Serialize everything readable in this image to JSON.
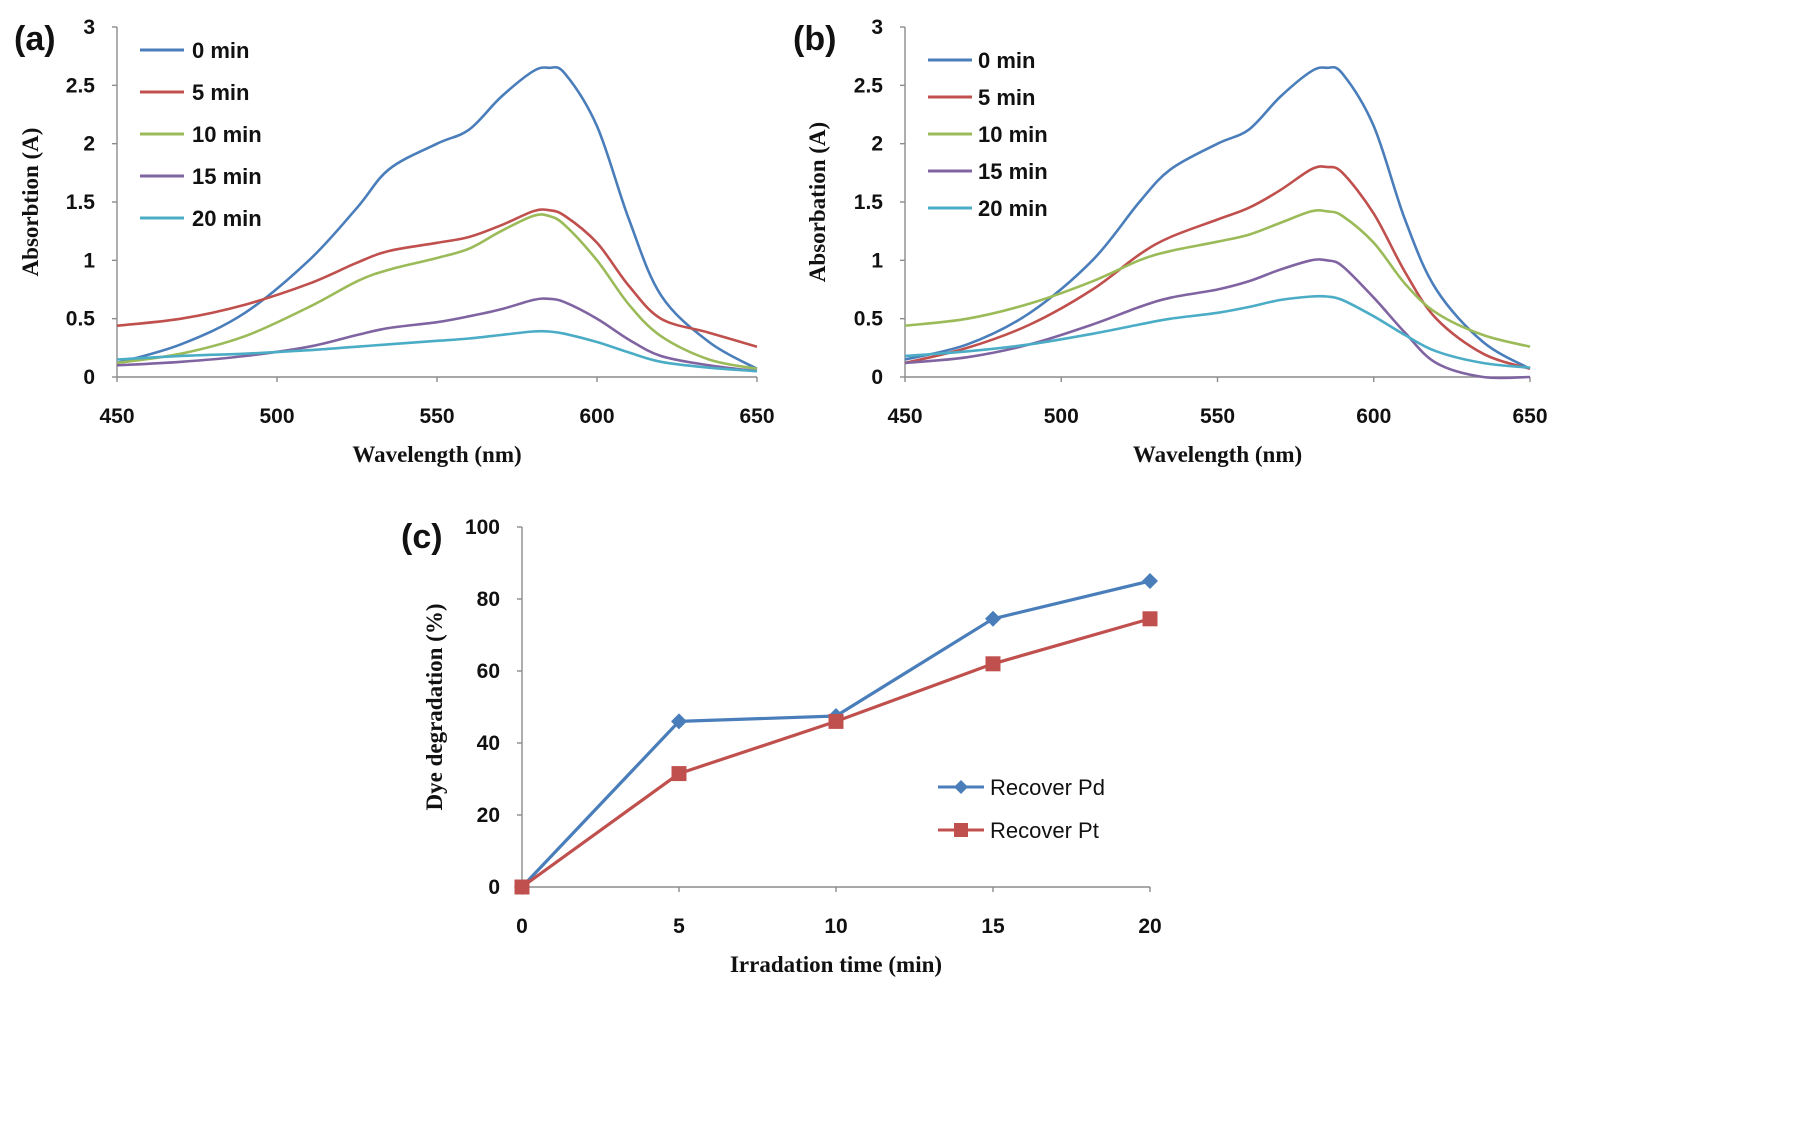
{
  "chart_data": [
    {
      "panel_label": "(a)",
      "type": "line",
      "xlabel": "Wavelength (nm)",
      "ylabel": "Absorbtion (A)",
      "xlim": [
        450,
        650
      ],
      "ylim": [
        0,
        3
      ],
      "xticks": [
        450,
        500,
        550,
        600,
        650
      ],
      "yticks": [
        0,
        0.5,
        1,
        1.5,
        2,
        2.5,
        3
      ],
      "ytick_labels": [
        "0",
        "0.5",
        "1",
        "1.5",
        "2",
        "2.5",
        "3"
      ],
      "grid": false,
      "legend_position": "top-left",
      "series": [
        {
          "name": "0 min",
          "color": "#4a7ebb",
          "x": [
            450,
            470,
            490,
            510,
            525,
            535,
            550,
            560,
            570,
            580,
            585,
            590,
            600,
            610,
            620,
            635,
            650
          ],
          "y": [
            0.12,
            0.28,
            0.55,
            1.0,
            1.45,
            1.78,
            2.0,
            2.12,
            2.4,
            2.62,
            2.65,
            2.6,
            2.15,
            1.35,
            0.7,
            0.3,
            0.07
          ]
        },
        {
          "name": "5 min",
          "color": "#c0504d",
          "x": [
            450,
            470,
            490,
            510,
            525,
            535,
            550,
            560,
            570,
            580,
            585,
            590,
            600,
            610,
            620,
            635,
            650
          ],
          "y": [
            0.44,
            0.5,
            0.62,
            0.8,
            0.98,
            1.08,
            1.15,
            1.2,
            1.3,
            1.42,
            1.43,
            1.38,
            1.15,
            0.78,
            0.5,
            0.38,
            0.26
          ]
        },
        {
          "name": "10 min",
          "color": "#9bbb59",
          "x": [
            450,
            470,
            490,
            510,
            525,
            535,
            550,
            560,
            570,
            580,
            585,
            590,
            600,
            610,
            620,
            635,
            650
          ],
          "y": [
            0.12,
            0.2,
            0.35,
            0.6,
            0.82,
            0.92,
            1.02,
            1.1,
            1.25,
            1.38,
            1.38,
            1.3,
            1.0,
            0.62,
            0.35,
            0.15,
            0.07
          ]
        },
        {
          "name": "15 min",
          "color": "#8064a2",
          "x": [
            450,
            470,
            490,
            510,
            525,
            535,
            550,
            560,
            570,
            580,
            585,
            590,
            600,
            610,
            620,
            635,
            650
          ],
          "y": [
            0.1,
            0.13,
            0.18,
            0.26,
            0.36,
            0.42,
            0.47,
            0.52,
            0.58,
            0.66,
            0.67,
            0.64,
            0.5,
            0.32,
            0.18,
            0.1,
            0.05
          ]
        },
        {
          "name": "20 min",
          "color": "#4bacc6",
          "x": [
            450,
            470,
            490,
            510,
            525,
            535,
            550,
            560,
            570,
            580,
            585,
            590,
            600,
            610,
            620,
            635,
            650
          ],
          "y": [
            0.15,
            0.18,
            0.2,
            0.23,
            0.26,
            0.28,
            0.31,
            0.33,
            0.36,
            0.39,
            0.39,
            0.37,
            0.3,
            0.21,
            0.13,
            0.08,
            0.05
          ]
        }
      ]
    },
    {
      "panel_label": "(b)",
      "type": "line",
      "xlabel": "Wavelength (nm)",
      "ylabel": "Absorbation (A)",
      "xlim": [
        450,
        650
      ],
      "ylim": [
        0,
        3
      ],
      "xticks": [
        450,
        500,
        550,
        600,
        650
      ],
      "yticks": [
        0,
        0.5,
        1,
        1.5,
        2,
        2.5,
        3
      ],
      "ytick_labels": [
        "0",
        "0.5",
        "1",
        "1.5",
        "2",
        "2.5",
        "3"
      ],
      "grid": false,
      "legend_position": "top-left",
      "series": [
        {
          "name": "0 min",
          "color": "#4a7ebb",
          "x": [
            450,
            470,
            490,
            510,
            525,
            535,
            550,
            560,
            570,
            580,
            585,
            590,
            600,
            610,
            620,
            635,
            650
          ],
          "y": [
            0.15,
            0.28,
            0.55,
            1.0,
            1.5,
            1.78,
            2.0,
            2.12,
            2.4,
            2.62,
            2.65,
            2.6,
            2.15,
            1.35,
            0.75,
            0.3,
            0.07
          ]
        },
        {
          "name": "5 min",
          "color": "#c0504d",
          "x": [
            450,
            470,
            490,
            510,
            525,
            535,
            550,
            560,
            570,
            580,
            585,
            590,
            600,
            610,
            620,
            635,
            650
          ],
          "y": [
            0.12,
            0.25,
            0.45,
            0.75,
            1.05,
            1.2,
            1.35,
            1.45,
            1.6,
            1.78,
            1.8,
            1.75,
            1.4,
            0.9,
            0.5,
            0.2,
            0.07
          ]
        },
        {
          "name": "10 min",
          "color": "#9bbb59",
          "x": [
            450,
            470,
            490,
            510,
            525,
            535,
            550,
            560,
            570,
            580,
            585,
            590,
            600,
            610,
            620,
            635,
            650
          ],
          "y": [
            0.44,
            0.5,
            0.63,
            0.82,
            1.0,
            1.08,
            1.16,
            1.22,
            1.32,
            1.42,
            1.42,
            1.38,
            1.15,
            0.8,
            0.55,
            0.36,
            0.26
          ]
        },
        {
          "name": "15 min",
          "color": "#8064a2",
          "x": [
            450,
            470,
            490,
            510,
            525,
            535,
            550,
            560,
            570,
            580,
            585,
            590,
            600,
            610,
            620,
            635,
            650
          ],
          "y": [
            0.12,
            0.17,
            0.28,
            0.45,
            0.6,
            0.68,
            0.75,
            0.82,
            0.92,
            1.0,
            1.0,
            0.95,
            0.68,
            0.38,
            0.12,
            0.0,
            0.0
          ]
        },
        {
          "name": "20 min",
          "color": "#4bacc6",
          "x": [
            450,
            470,
            490,
            510,
            525,
            535,
            550,
            560,
            570,
            580,
            585,
            590,
            600,
            610,
            620,
            635,
            650
          ],
          "y": [
            0.18,
            0.22,
            0.28,
            0.37,
            0.45,
            0.5,
            0.55,
            0.6,
            0.66,
            0.69,
            0.69,
            0.66,
            0.52,
            0.36,
            0.22,
            0.12,
            0.08
          ]
        }
      ]
    },
    {
      "panel_label": "(c)",
      "type": "line",
      "xlabel": "Irradation time (min)",
      "ylabel": "Dye degradation (%)",
      "xlim": [
        0,
        20
      ],
      "ylim": [
        0,
        100
      ],
      "xticks": [
        0,
        5,
        10,
        15,
        20
      ],
      "yticks": [
        0,
        20,
        40,
        60,
        80,
        100
      ],
      "ytick_labels": [
        "0",
        "20",
        "40",
        "60",
        "80",
        "100"
      ],
      "grid": false,
      "legend_position": "center-right",
      "series": [
        {
          "name": "Recover Pd",
          "color": "#4a7ebb",
          "marker": "diamond",
          "x": [
            0,
            5,
            10,
            15,
            20
          ],
          "y": [
            0,
            46,
            47.5,
            74.5,
            85
          ]
        },
        {
          "name": "Recover Pt",
          "color": "#c0504d",
          "marker": "square",
          "x": [
            0,
            5,
            10,
            15,
            20
          ],
          "y": [
            0,
            31.5,
            46,
            62,
            74.5
          ]
        }
      ]
    }
  ]
}
